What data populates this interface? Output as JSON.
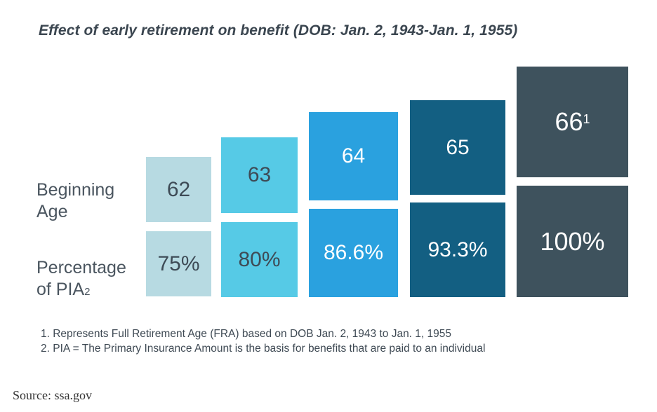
{
  "chart_data": {
    "type": "table",
    "title": "Effect of early retirement on benefit (DOB: Jan. 2, 1943-Jan. 1, 1955)",
    "row_labels": {
      "age": "Beginning Age",
      "age_line1": "Beginning",
      "age_line2": "Age",
      "pct_line1": "Percentage",
      "pct_line2": "of PIA",
      "pct_sub": "2"
    },
    "columns": [
      {
        "age": "62",
        "percent": "75%",
        "percent_value": 75,
        "color": "#b7dae2",
        "text_color": "#3e4b56"
      },
      {
        "age": "63",
        "percent": "80%",
        "percent_value": 80,
        "color": "#56cae6",
        "text_color": "#3e4b56"
      },
      {
        "age": "64",
        "percent": "86.6%",
        "percent_value": 86.6,
        "color": "#2aa1df",
        "text_color": "#ffffff"
      },
      {
        "age": "65",
        "percent": "93.3%",
        "percent_value": 93.3,
        "color": "#135f82",
        "text_color": "#ffffff"
      },
      {
        "age": "66",
        "age_sup": "1",
        "percent": "100%",
        "percent_value": 100,
        "color": "#3e525d",
        "text_color": "#ffffff"
      }
    ]
  },
  "footnotes": [
    "1. Represents Full Retirement Age (FRA) based on DOB Jan. 2, 1943 to Jan. 1, 1955",
    "2. PIA = The Primary Insurance Amount is the basis for benefits that are paid to an individual"
  ],
  "source": "Source: ssa.gov"
}
